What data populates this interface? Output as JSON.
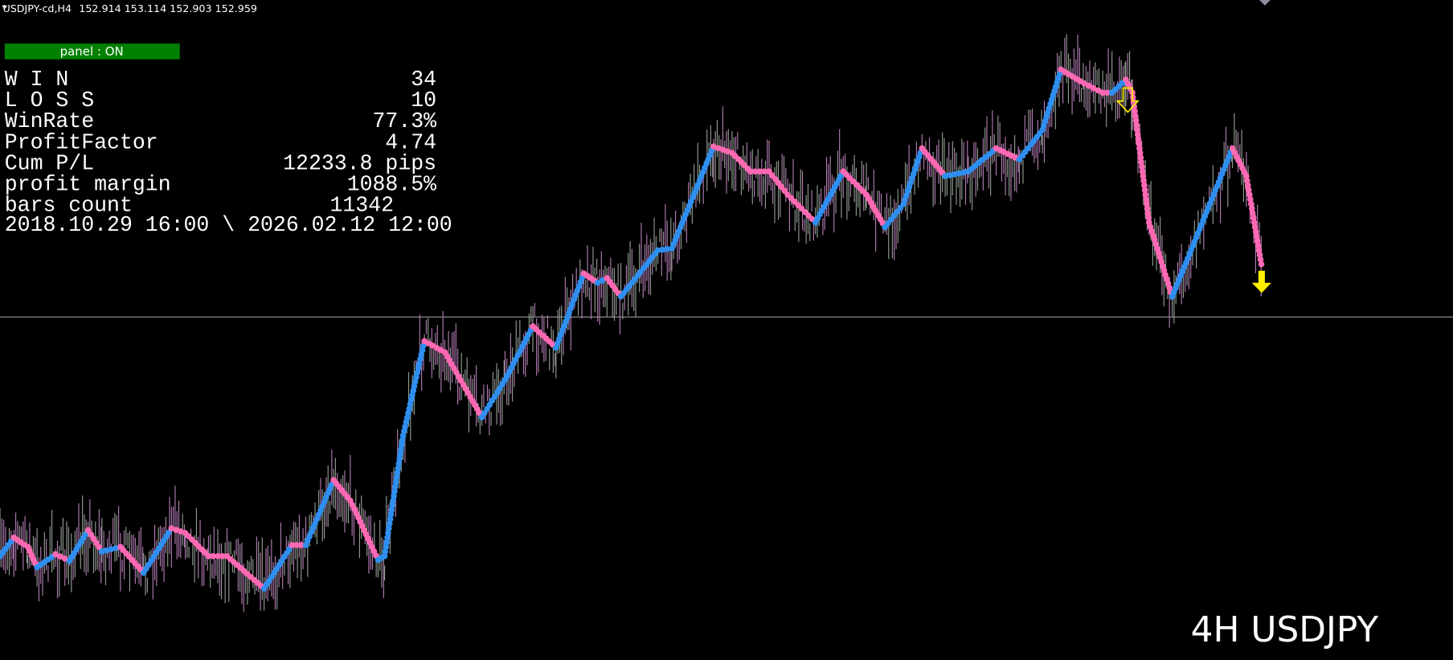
{
  "header": {
    "symbol": "USDJPY-cd,H4",
    "prices": "152.914 153.114 152.903 152.959"
  },
  "panel": {
    "toggle": "panel : ON",
    "stats": [
      {
        "label": "W I N",
        "value": "34"
      },
      {
        "label": "L O S S",
        "value": "10"
      },
      {
        "label": "WinRate",
        "value": "77.3%"
      },
      {
        "label": "ProfitFactor",
        "value": "4.74"
      },
      {
        "label": "Cum P/L",
        "value": "12233.8 pips"
      },
      {
        "label": "profit margin",
        "value": "1088.5%"
      },
      {
        "label": "bars count",
        "value": "11342"
      }
    ],
    "date_range": "2018.10.29 16:00 \\ 2026.02.12 12:00"
  },
  "watermark": "4H USDJPY"
}
